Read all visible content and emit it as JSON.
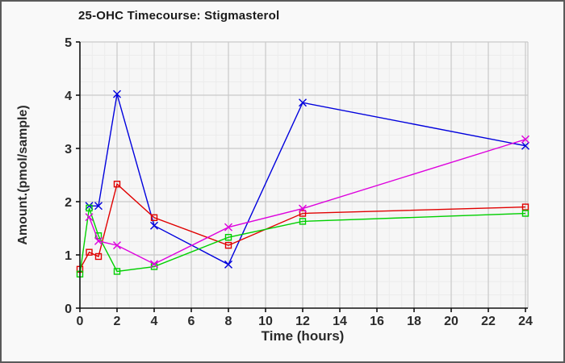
{
  "window": {
    "background": "#f9f9f9",
    "border_color": "#5a5a5a"
  },
  "chart_data": {
    "type": "line",
    "title": "25-OHC Timecourse: Stigmasterol",
    "xlabel": "Time (hours)",
    "ylabel": "Amount.(pmol/sample)",
    "xlim": [
      0,
      24.15
    ],
    "ylim": [
      0,
      5
    ],
    "x_ticks": [
      0,
      2,
      4,
      6,
      8,
      10,
      12,
      14,
      16,
      18,
      20,
      22,
      24
    ],
    "y_ticks": [
      0,
      1,
      2,
      3,
      4,
      5
    ],
    "grid": {
      "major": true,
      "minor": true,
      "major_color": "#c9c9c9",
      "minor_color": "#ececec",
      "minor_x_step": 0.6667,
      "minor_y_step": 0.25,
      "plot_bg": "#f6f6f6",
      "frame_color": "#c9c9c9"
    },
    "legend": "none",
    "axis_color": "#111111",
    "text_color": "#2b2b2b",
    "series": [
      {
        "name": "blue",
        "color": "#0000dd",
        "marker": "x",
        "points": [
          [
            0.5,
            1.92
          ],
          [
            1,
            1.92
          ],
          [
            2,
            4.02
          ],
          [
            4,
            1.55
          ],
          [
            8,
            0.82
          ],
          [
            12,
            3.86
          ],
          [
            24,
            3.05
          ]
        ]
      },
      {
        "name": "red",
        "color": "#e00000",
        "marker": "square",
        "points": [
          [
            0,
            0.73
          ],
          [
            0.5,
            1.05
          ],
          [
            1,
            0.97
          ],
          [
            2,
            2.33
          ],
          [
            4,
            1.7
          ],
          [
            8,
            1.18
          ],
          [
            12,
            1.78
          ],
          [
            24,
            1.9
          ]
        ]
      },
      {
        "name": "green",
        "color": "#00d000",
        "marker": "square",
        "points": [
          [
            0,
            0.64
          ],
          [
            0.5,
            1.88
          ],
          [
            1,
            1.36
          ],
          [
            2,
            0.69
          ],
          [
            4,
            0.78
          ],
          [
            8,
            1.33
          ],
          [
            12,
            1.63
          ],
          [
            24,
            1.78
          ]
        ]
      },
      {
        "name": "magenta",
        "color": "#dd00dd",
        "marker": "x",
        "points": [
          [
            0.5,
            1.71
          ],
          [
            1,
            1.26
          ],
          [
            2,
            1.18
          ],
          [
            4,
            0.83
          ],
          [
            8,
            1.52
          ],
          [
            12,
            1.87
          ],
          [
            24,
            3.17
          ]
        ]
      }
    ]
  }
}
